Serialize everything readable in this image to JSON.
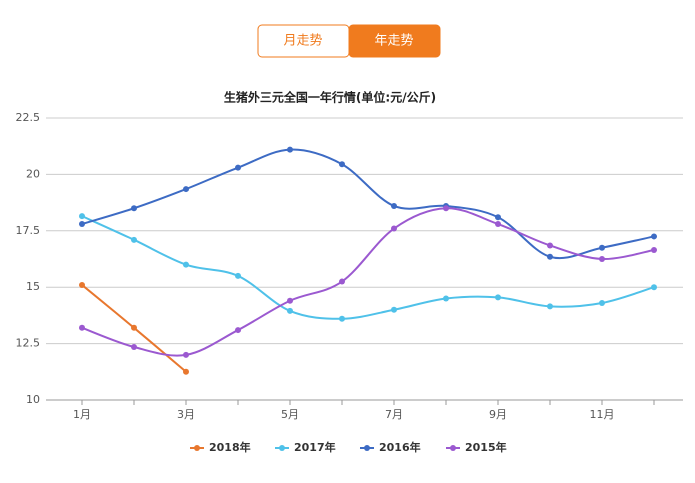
{
  "tabs": [
    "月走势",
    "年走势"
  ],
  "chart_data": {
    "type": "line",
    "title": "生猪外三元全国一年行情(单位:元/公斤)",
    "categories": [
      "1月",
      null,
      "3月",
      null,
      "5月",
      null,
      "7月",
      null,
      "9月",
      null,
      "11月",
      null
    ],
    "series": [
      {
        "name": "2018年",
        "color": "#e8772e",
        "values": [
          15.1,
          13.2,
          11.25,
          null,
          null,
          null,
          null,
          null,
          null,
          null,
          null,
          null
        ]
      },
      {
        "name": "2017年",
        "color": "#4fc1e9",
        "values": [
          18.15,
          17.1,
          16.0,
          15.5,
          13.95,
          13.6,
          14.0,
          14.5,
          14.55,
          14.15,
          14.3,
          15.0
        ]
      },
      {
        "name": "2016年",
        "color": "#3d6bc4",
        "values": [
          17.8,
          18.5,
          19.35,
          20.3,
          21.1,
          20.45,
          18.6,
          18.6,
          18.1,
          16.35,
          16.75,
          17.25
        ]
      },
      {
        "name": "2015年",
        "color": "#9b59d0",
        "values": [
          13.2,
          12.35,
          12.0,
          13.1,
          14.4,
          15.25,
          17.6,
          18.5,
          17.8,
          16.85,
          16.25,
          16.65
        ]
      }
    ],
    "ylim": [
      10,
      22.5
    ],
    "yticks": [
      10,
      12.5,
      15,
      17.5,
      20,
      22.5
    ],
    "grid": true,
    "legend": "bottom"
  }
}
